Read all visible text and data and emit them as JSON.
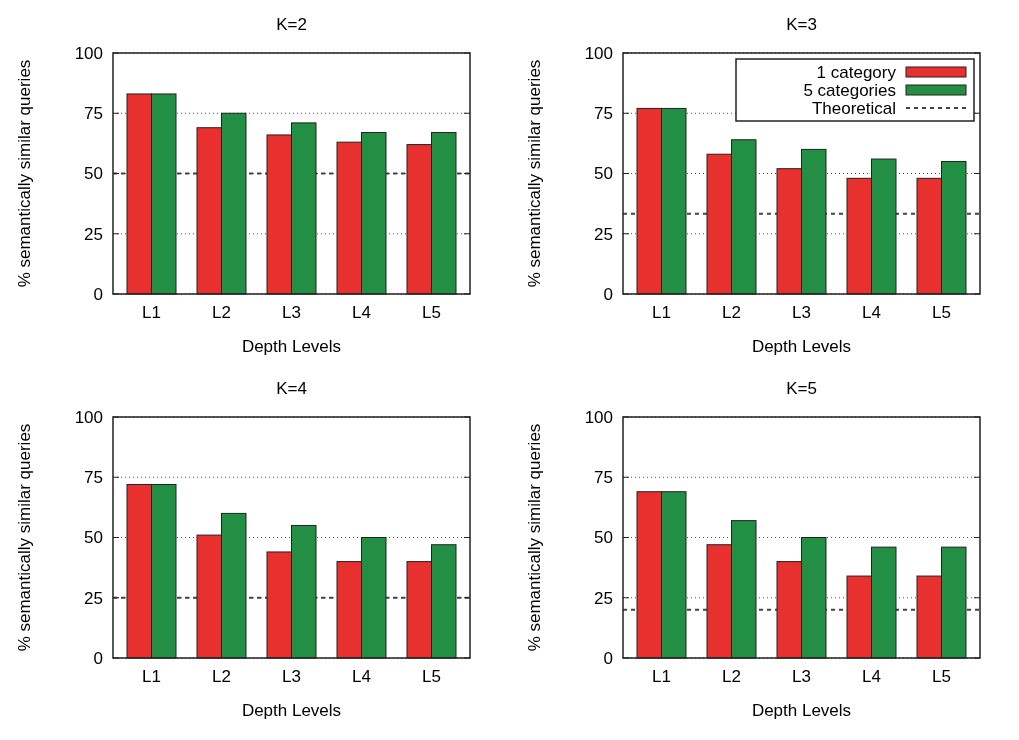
{
  "chart_data": [
    {
      "type": "bar",
      "title": "K=2",
      "xlabel": "Depth Levels",
      "ylabel": "% semantically similar queries",
      "categories": [
        "L1",
        "L2",
        "L3",
        "L4",
        "L5"
      ],
      "series": [
        {
          "color": "#e8302f",
          "values": [
            83,
            69,
            66,
            63,
            62
          ]
        },
        {
          "color": "#238f45",
          "values": [
            83,
            75,
            71,
            67,
            67
          ]
        }
      ],
      "ylim": [
        0,
        100
      ],
      "yticks": [
        0,
        25,
        50,
        75,
        100
      ],
      "grid": "y",
      "legend": false,
      "ref_lines": [
        {
          "axis": "y",
          "value": 50,
          "line_style": "dashed",
          "color": "#444444"
        }
      ]
    },
    {
      "type": "bar",
      "title": "K=3",
      "xlabel": "Depth Levels",
      "ylabel": "% semantically similar queries",
      "categories": [
        "L1",
        "L2",
        "L3",
        "L4",
        "L5"
      ],
      "series": [
        {
          "name": "1 category",
          "color": "#e8302f",
          "values": [
            77,
            58,
            52,
            48,
            48
          ]
        },
        {
          "name": "5 categories",
          "color": "#238f45",
          "values": [
            77,
            64,
            60,
            56,
            55
          ]
        }
      ],
      "ylim": [
        0,
        100
      ],
      "yticks": [
        0,
        25,
        50,
        75,
        100
      ],
      "grid": "y",
      "legend": "top right",
      "ref_lines": [
        {
          "axis": "y",
          "value": 33.3,
          "label": "Theoretical",
          "line_style": "dashed",
          "color": "#444444"
        }
      ]
    },
    {
      "type": "bar",
      "title": "K=4",
      "xlabel": "Depth Levels",
      "ylabel": "% semantically similar queries",
      "categories": [
        "L1",
        "L2",
        "L3",
        "L4",
        "L5"
      ],
      "series": [
        {
          "color": "#e8302f",
          "values": [
            72,
            51,
            44,
            40,
            40
          ]
        },
        {
          "color": "#238f45",
          "values": [
            72,
            60,
            55,
            50,
            47
          ]
        }
      ],
      "ylim": [
        0,
        100
      ],
      "yticks": [
        0,
        25,
        50,
        75,
        100
      ],
      "grid": "y",
      "legend": false,
      "ref_lines": [
        {
          "axis": "y",
          "value": 25,
          "line_style": "dashed",
          "color": "#444444"
        }
      ]
    },
    {
      "type": "bar",
      "title": "K=5",
      "xlabel": "Depth Levels",
      "ylabel": "% semantically similar queries",
      "categories": [
        "L1",
        "L2",
        "L3",
        "L4",
        "L5"
      ],
      "series": [
        {
          "color": "#e8302f",
          "values": [
            69,
            47,
            40,
            34,
            34
          ]
        },
        {
          "color": "#238f45",
          "values": [
            69,
            57,
            50,
            46,
            46
          ]
        }
      ],
      "ylim": [
        0,
        100
      ],
      "yticks": [
        0,
        25,
        50,
        75,
        100
      ],
      "grid": "y",
      "legend": false,
      "ref_lines": [
        {
          "axis": "y",
          "value": 20,
          "line_style": "dashed",
          "color": "#444444"
        }
      ]
    }
  ]
}
